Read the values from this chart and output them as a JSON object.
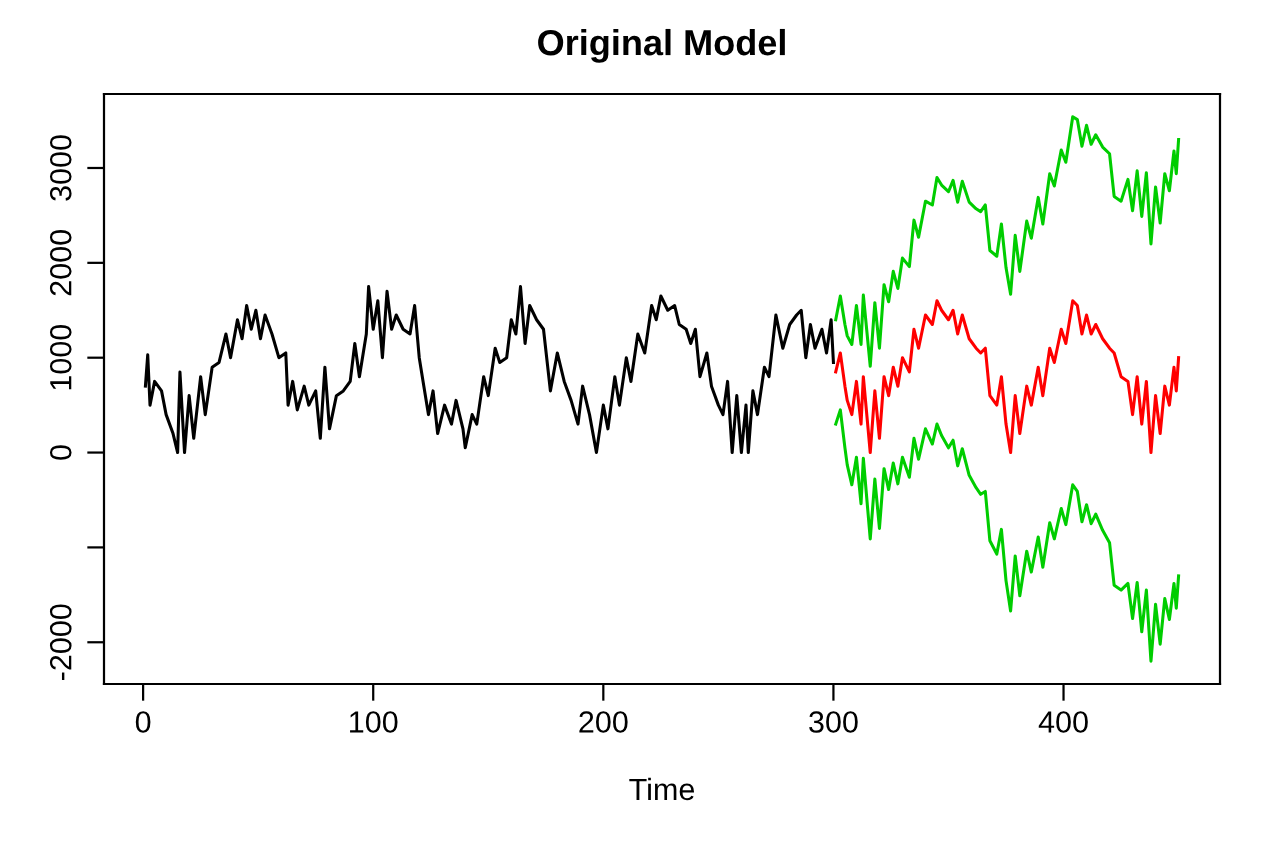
{
  "chart_data": {
    "type": "line",
    "title": "Original Model",
    "xlabel": "Time",
    "xlim": [
      -17,
      468
    ],
    "xticks": [
      0,
      100,
      200,
      300,
      400
    ],
    "ylim": [
      -2440,
      3780
    ],
    "yticks": [
      -2000,
      {
        "value": -1000,
        "label": null
      },
      0,
      1000,
      2000,
      3000
    ],
    "grid": false,
    "legend": false,
    "line_style": "solid",
    "marker": "none",
    "series": [
      {
        "color": "#000000",
        "x": [
          1,
          2,
          3,
          5,
          8,
          10,
          13,
          15,
          16,
          18,
          20,
          22,
          25,
          27,
          30,
          33,
          36,
          38,
          41,
          43,
          45,
          47,
          49,
          51,
          53,
          56,
          59,
          62,
          63,
          65,
          67,
          70,
          72,
          75,
          77,
          79,
          81,
          84,
          87,
          90,
          92,
          94,
          97,
          98,
          100,
          102,
          104,
          106,
          108,
          110,
          113,
          116,
          118,
          120,
          122,
          124,
          126,
          128,
          131,
          134,
          136,
          139,
          140,
          143,
          145,
          148,
          150,
          153,
          155,
          158,
          160,
          162,
          164,
          166,
          168,
          171,
          174,
          177,
          180,
          183,
          186,
          189,
          191,
          194,
          197,
          200,
          202,
          205,
          207,
          210,
          212,
          215,
          218,
          221,
          223,
          225,
          228,
          231,
          233,
          236,
          238,
          240,
          242,
          245,
          247,
          250,
          252,
          254,
          256,
          258,
          260,
          262,
          263,
          265,
          267,
          270,
          272,
          275,
          278,
          281,
          284,
          286,
          288,
          290,
          292,
          295,
          297,
          299,
          300
        ],
        "values": [
          700,
          1030,
          500,
          750,
          650,
          400,
          200,
          0,
          850,
          0,
          600,
          150,
          800,
          400,
          900,
          950,
          1250,
          1000,
          1400,
          1200,
          1550,
          1300,
          1500,
          1200,
          1450,
          1250,
          1000,
          1050,
          500,
          750,
          450,
          700,
          500,
          650,
          150,
          900,
          250,
          600,
          650,
          750,
          1150,
          800,
          1250,
          1750,
          1300,
          1600,
          1000,
          1700,
          1300,
          1450,
          1300,
          1250,
          1550,
          1000,
          700,
          400,
          650,
          200,
          500,
          300,
          550,
          250,
          50,
          400,
          300,
          800,
          600,
          1100,
          950,
          1000,
          1400,
          1250,
          1750,
          1150,
          1550,
          1400,
          1300,
          650,
          1050,
          750,
          550,
          300,
          700,
          400,
          0,
          500,
          250,
          800,
          500,
          1000,
          750,
          1250,
          1050,
          1550,
          1400,
          1650,
          1500,
          1550,
          1350,
          1300,
          1150,
          1300,
          800,
          1050,
          700,
          500,
          400,
          750,
          0,
          600,
          0,
          500,
          0,
          650,
          400,
          900,
          800,
          1450,
          1100,
          1350,
          1450,
          1500,
          1000,
          1350,
          1100,
          1300,
          1050,
          1400,
          950
        ]
      },
      {
        "color": "#ff0000",
        "x": [
          301,
          303,
          305,
          306,
          308,
          310,
          312,
          313,
          316,
          318,
          320,
          322,
          324,
          326,
          328,
          330,
          333,
          335,
          337,
          340,
          343,
          345,
          347,
          350,
          352,
          354,
          356,
          359,
          362,
          364,
          366,
          368,
          371,
          373,
          375,
          377,
          379,
          381,
          384,
          386,
          389,
          391,
          394,
          396,
          399,
          401,
          404,
          406,
          408,
          410,
          412,
          414,
          417,
          420,
          422,
          425,
          428,
          430,
          432,
          434,
          436,
          438,
          440,
          442,
          444,
          446,
          448,
          449,
          450
        ],
        "values": [
          850,
          1050,
          700,
          550,
          400,
          750,
          300,
          800,
          0,
          650,
          150,
          800,
          600,
          900,
          700,
          1000,
          850,
          1300,
          1100,
          1450,
          1350,
          1600,
          1500,
          1400,
          1500,
          1250,
          1450,
          1200,
          1100,
          1050,
          1100,
          600,
          500,
          800,
          300,
          0,
          600,
          200,
          700,
          500,
          900,
          600,
          1100,
          950,
          1300,
          1150,
          1600,
          1550,
          1250,
          1450,
          1250,
          1350,
          1200,
          1100,
          1050,
          800,
          750,
          400,
          800,
          300,
          750,
          0,
          600,
          200,
          700,
          500,
          900,
          650,
          1000
        ]
      },
      {
        "color": "#00cd00",
        "x": [
          301,
          303,
          305,
          306,
          308,
          310,
          312,
          313,
          316,
          318,
          320,
          322,
          324,
          326,
          328,
          330,
          333,
          335,
          337,
          340,
          343,
          345,
          347,
          350,
          352,
          354,
          356,
          359,
          362,
          364,
          366,
          368,
          371,
          373,
          375,
          377,
          379,
          381,
          384,
          386,
          389,
          391,
          394,
          396,
          399,
          401,
          404,
          406,
          408,
          410,
          412,
          414,
          417,
          420,
          422,
          425,
          428,
          430,
          432,
          434,
          436,
          438,
          440,
          442,
          444,
          446,
          448,
          449,
          450
        ],
        "values": [
          1400,
          1650,
          1350,
          1230,
          1140,
          1550,
          1140,
          1660,
          910,
          1580,
          1100,
          1770,
          1590,
          1910,
          1730,
          2050,
          1960,
          2450,
          2270,
          2650,
          2610,
          2900,
          2820,
          2750,
          2870,
          2640,
          2860,
          2640,
          2570,
          2540,
          2610,
          2130,
          2070,
          2410,
          1950,
          1670,
          2290,
          1910,
          2440,
          2260,
          2690,
          2410,
          2940,
          2810,
          3190,
          3060,
          3540,
          3510,
          3230,
          3450,
          3250,
          3350,
          3220,
          3150,
          2700,
          2650,
          2880,
          2550,
          2970,
          2490,
          2950,
          2200,
          2800,
          2420,
          2940,
          2760,
          3180,
          2940,
          3300
        ]
      },
      {
        "color": "#00cd00",
        "x": [
          301,
          303,
          305,
          306,
          308,
          310,
          312,
          313,
          316,
          318,
          320,
          322,
          324,
          326,
          328,
          330,
          333,
          335,
          337,
          340,
          343,
          345,
          347,
          350,
          352,
          354,
          356,
          359,
          362,
          364,
          366,
          368,
          371,
          373,
          375,
          377,
          379,
          381,
          384,
          386,
          389,
          391,
          394,
          396,
          399,
          401,
          404,
          406,
          408,
          410,
          412,
          414,
          417,
          420,
          422,
          425,
          428,
          430,
          432,
          434,
          436,
          438,
          440,
          442,
          444,
          446,
          448,
          449,
          450
        ],
        "values": [
          300,
          450,
          50,
          -130,
          -340,
          -50,
          -540,
          -60,
          -910,
          -280,
          -800,
          -170,
          -390,
          -110,
          -330,
          -50,
          -260,
          150,
          -70,
          250,
          90,
          300,
          180,
          50,
          130,
          -140,
          40,
          -240,
          -370,
          -440,
          -410,
          -930,
          -1070,
          -810,
          -1350,
          -1670,
          -1090,
          -1510,
          -1040,
          -1260,
          -890,
          -1210,
          -740,
          -910,
          -590,
          -760,
          -340,
          -410,
          -730,
          -550,
          -750,
          -650,
          -820,
          -950,
          -1400,
          -1450,
          -1380,
          -1750,
          -1370,
          -1890,
          -1450,
          -2200,
          -1600,
          -2020,
          -1540,
          -1760,
          -1380,
          -1640,
          -1300
        ]
      }
    ]
  }
}
